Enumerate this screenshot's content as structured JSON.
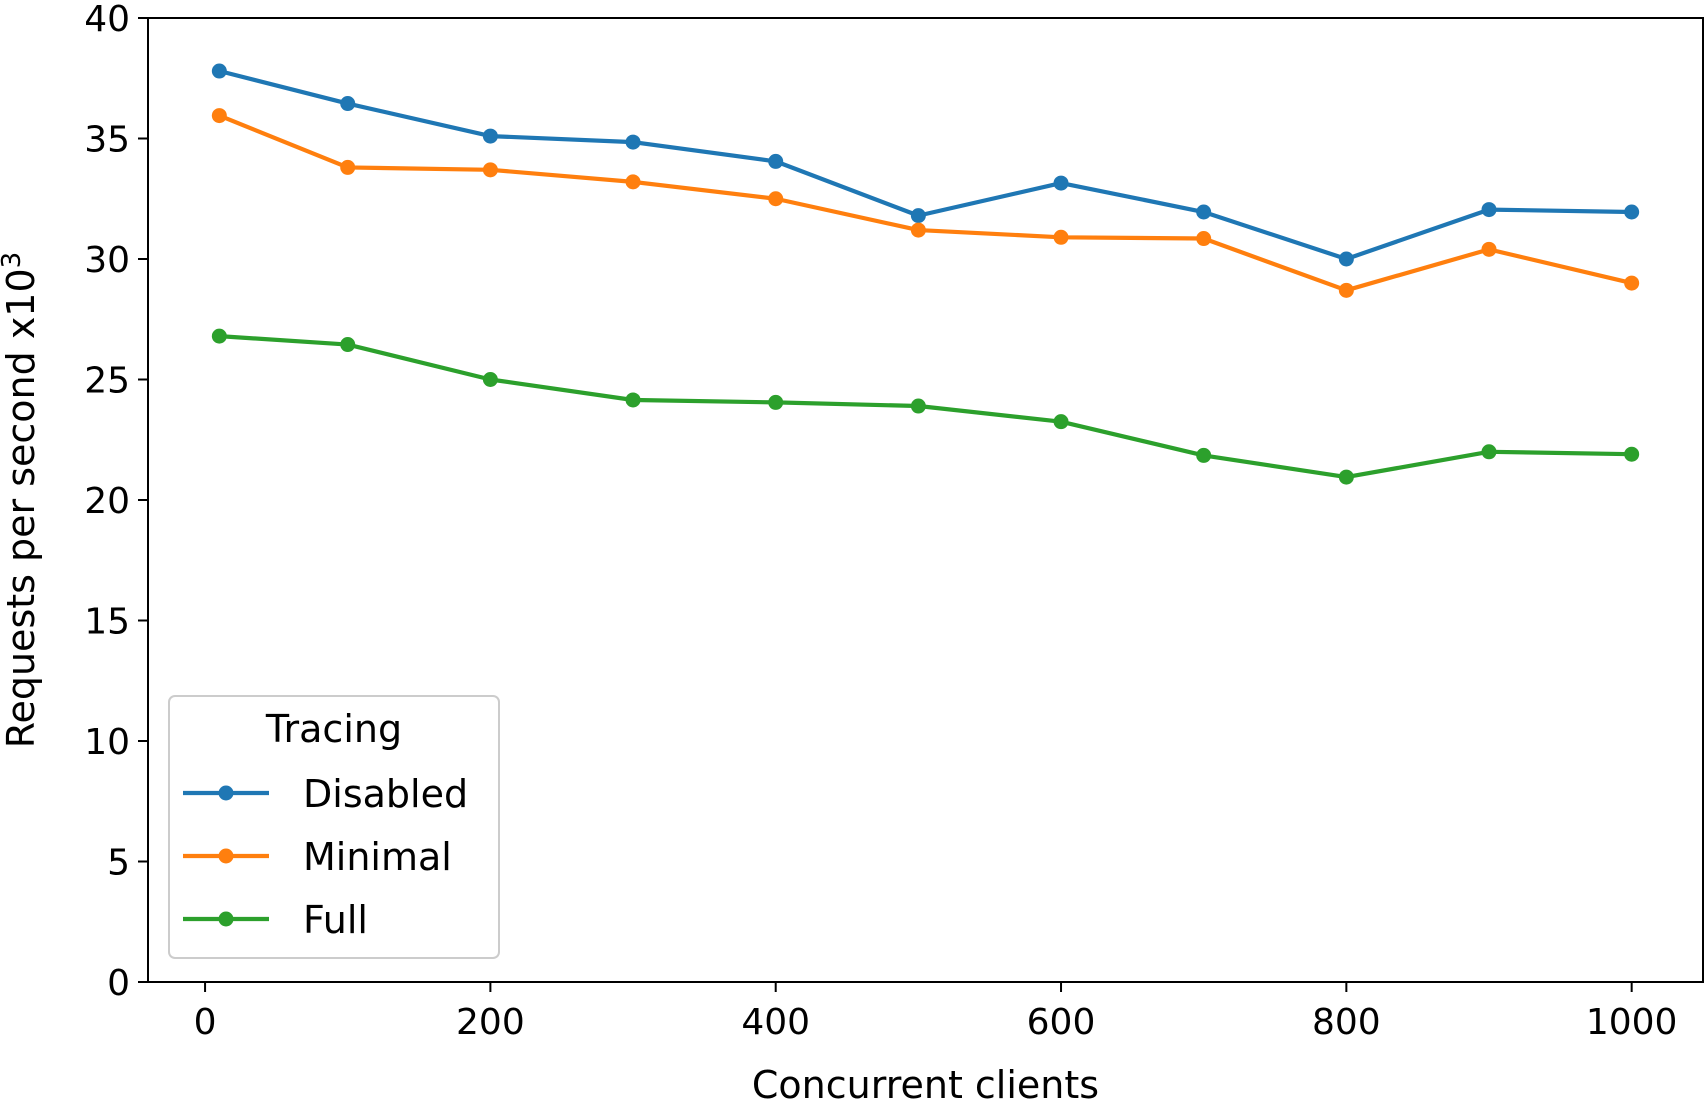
{
  "chart_data": {
    "type": "line",
    "title": "",
    "xlabel": "Concurrent clients",
    "ylabel": "Requests per second x10",
    "ylabel_superscript": "3",
    "xlim": [
      -40,
      1050
    ],
    "ylim": [
      0,
      40
    ],
    "xticks": [
      0,
      200,
      400,
      600,
      800,
      1000
    ],
    "yticks": [
      0,
      5,
      10,
      15,
      20,
      25,
      30,
      35,
      40
    ],
    "grid": false,
    "legend": {
      "title": "Tracing",
      "placement": "lower-left"
    },
    "x": [
      10,
      100,
      200,
      300,
      400,
      500,
      600,
      700,
      800,
      900,
      1000
    ],
    "series": [
      {
        "name": "Disabled",
        "color": "#1f77b4",
        "values": [
          37.8,
          36.45,
          35.1,
          34.85,
          34.05,
          31.8,
          33.15,
          31.95,
          30.0,
          32.05,
          31.95
        ]
      },
      {
        "name": "Minimal",
        "color": "#ff7f0e",
        "values": [
          35.95,
          33.8,
          33.7,
          33.2,
          32.5,
          31.2,
          30.9,
          30.85,
          28.7,
          30.4,
          29.0
        ]
      },
      {
        "name": "Full",
        "color": "#2ca02c",
        "values": [
          26.8,
          26.45,
          25.0,
          24.15,
          24.05,
          23.9,
          23.25,
          21.85,
          20.95,
          22.0,
          21.9
        ]
      }
    ]
  }
}
